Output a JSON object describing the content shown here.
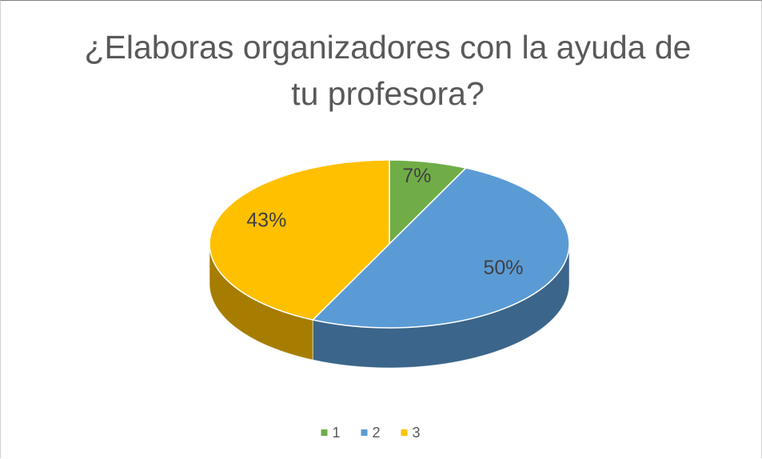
{
  "chart_data": {
    "type": "pie3d",
    "title": "¿Elaboras organizadores con la ayuda de tu profesora?",
    "categories": [
      "1",
      "2",
      "3"
    ],
    "values": [
      7,
      50,
      43
    ],
    "value_labels": [
      "7%",
      "50%",
      "43%"
    ],
    "colors": [
      "#70ad47",
      "#5b9bd5",
      "#ffc000"
    ],
    "legend": "bottom"
  }
}
